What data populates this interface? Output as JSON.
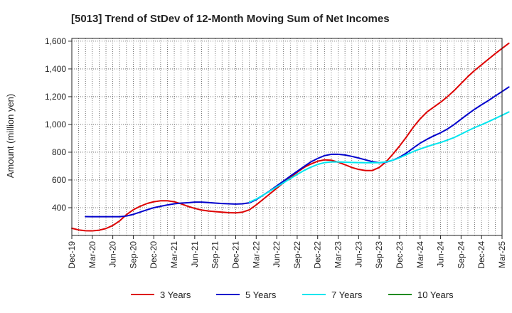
{
  "chart_data": {
    "type": "line",
    "title": "[5013]  Trend of StDev of 12-Month Moving Sum of Net Incomes",
    "xlabel": "",
    "ylabel": "Amount (million yen)",
    "ylim": [
      200,
      1620
    ],
    "yticks": [
      400,
      600,
      800,
      1000,
      1200,
      1400,
      1600
    ],
    "ytick_labels": [
      "400",
      "600",
      "800",
      "1,000",
      "1,200",
      "1,400",
      "1,600"
    ],
    "x_tick_labels": [
      "Dec-19",
      "Mar-20",
      "Jun-20",
      "Sep-20",
      "Dec-20",
      "Mar-21",
      "Jun-21",
      "Sep-21",
      "Dec-21",
      "Mar-22",
      "Jun-22",
      "Sep-22",
      "Dec-22",
      "Mar-23",
      "Jun-23",
      "Sep-23",
      "Dec-23",
      "Mar-24",
      "Jun-24",
      "Sep-24",
      "Dec-24",
      "Mar-25"
    ],
    "grid": true,
    "legend_position": "bottom",
    "series": [
      {
        "name": "3 Years",
        "color": "#dd0000",
        "points": [
          [
            0,
            252
          ],
          [
            1,
            240
          ],
          [
            2,
            234
          ],
          [
            3,
            233
          ],
          [
            4,
            238
          ],
          [
            5,
            250
          ],
          [
            6,
            272
          ],
          [
            7,
            305
          ],
          [
            8,
            350
          ],
          [
            9,
            385
          ],
          [
            10,
            410
          ],
          [
            11,
            430
          ],
          [
            12,
            443
          ],
          [
            13,
            450
          ],
          [
            14,
            450
          ],
          [
            15,
            443
          ],
          [
            16,
            428
          ],
          [
            17,
            410
          ],
          [
            18,
            395
          ],
          [
            19,
            383
          ],
          [
            20,
            376
          ],
          [
            21,
            372
          ],
          [
            22,
            368
          ],
          [
            23,
            364
          ],
          [
            24,
            363
          ],
          [
            25,
            368
          ],
          [
            26,
            385
          ],
          [
            27,
            420
          ],
          [
            28,
            460
          ],
          [
            29,
            500
          ],
          [
            30,
            540
          ],
          [
            31,
            580
          ],
          [
            32,
            618
          ],
          [
            33,
            655
          ],
          [
            34,
            690
          ],
          [
            35,
            715
          ],
          [
            36,
            735
          ],
          [
            37,
            745
          ],
          [
            38,
            742
          ],
          [
            39,
            728
          ],
          [
            40,
            710
          ],
          [
            41,
            690
          ],
          [
            42,
            676
          ],
          [
            43,
            668
          ],
          [
            44,
            668
          ],
          [
            45,
            690
          ],
          [
            46,
            730
          ],
          [
            47,
            785
          ],
          [
            48,
            845
          ],
          [
            49,
            910
          ],
          [
            50,
            980
          ],
          [
            51,
            1040
          ],
          [
            52,
            1090
          ],
          [
            53,
            1125
          ],
          [
            54,
            1160
          ],
          [
            55,
            1200
          ],
          [
            56,
            1245
          ],
          [
            57,
            1295
          ],
          [
            58,
            1345
          ],
          [
            59,
            1390
          ],
          [
            60,
            1430
          ],
          [
            61,
            1470
          ],
          [
            62,
            1510
          ],
          [
            63,
            1548
          ],
          [
            64,
            1585
          ]
        ]
      },
      {
        "name": "5 Years",
        "color": "#0000cc",
        "points": [
          [
            2,
            336
          ],
          [
            3,
            335
          ],
          [
            4,
            335
          ],
          [
            5,
            335
          ],
          [
            6,
            335
          ],
          [
            7,
            335
          ],
          [
            8,
            340
          ],
          [
            9,
            352
          ],
          [
            10,
            368
          ],
          [
            11,
            385
          ],
          [
            12,
            400
          ],
          [
            13,
            410
          ],
          [
            14,
            420
          ],
          [
            15,
            428
          ],
          [
            16,
            433
          ],
          [
            17,
            436
          ],
          [
            18,
            440
          ],
          [
            19,
            440
          ],
          [
            20,
            437
          ],
          [
            21,
            433
          ],
          [
            22,
            430
          ],
          [
            23,
            428
          ],
          [
            24,
            426
          ],
          [
            25,
            428
          ],
          [
            26,
            435
          ],
          [
            27,
            458
          ],
          [
            28,
            490
          ],
          [
            29,
            522
          ],
          [
            30,
            557
          ],
          [
            31,
            592
          ],
          [
            32,
            628
          ],
          [
            33,
            662
          ],
          [
            34,
            697
          ],
          [
            35,
            730
          ],
          [
            36,
            755
          ],
          [
            37,
            775
          ],
          [
            38,
            785
          ],
          [
            39,
            785
          ],
          [
            40,
            780
          ],
          [
            41,
            770
          ],
          [
            42,
            758
          ],
          [
            43,
            745
          ],
          [
            44,
            732
          ],
          [
            45,
            724
          ],
          [
            46,
            728
          ],
          [
            47,
            742
          ],
          [
            48,
            764
          ],
          [
            49,
            794
          ],
          [
            50,
            830
          ],
          [
            51,
            865
          ],
          [
            52,
            893
          ],
          [
            53,
            918
          ],
          [
            54,
            940
          ],
          [
            55,
            967
          ],
          [
            56,
            1000
          ],
          [
            57,
            1038
          ],
          [
            58,
            1075
          ],
          [
            59,
            1110
          ],
          [
            60,
            1142
          ],
          [
            61,
            1172
          ],
          [
            62,
            1205
          ],
          [
            63,
            1237
          ],
          [
            64,
            1270
          ]
        ]
      },
      {
        "name": "7 Years",
        "color": "#00e5ee",
        "points": [
          [
            26,
            440
          ],
          [
            27,
            462
          ],
          [
            28,
            490
          ],
          [
            29,
            520
          ],
          [
            30,
            550
          ],
          [
            31,
            580
          ],
          [
            32,
            610
          ],
          [
            33,
            640
          ],
          [
            34,
            668
          ],
          [
            35,
            692
          ],
          [
            36,
            712
          ],
          [
            37,
            725
          ],
          [
            38,
            730
          ],
          [
            39,
            730
          ],
          [
            40,
            728
          ],
          [
            41,
            726
          ],
          [
            42,
            725
          ],
          [
            43,
            724
          ],
          [
            44,
            724
          ],
          [
            45,
            725
          ],
          [
            46,
            730
          ],
          [
            47,
            742
          ],
          [
            48,
            760
          ],
          [
            49,
            782
          ],
          [
            50,
            805
          ],
          [
            51,
            823
          ],
          [
            52,
            840
          ],
          [
            53,
            856
          ],
          [
            54,
            870
          ],
          [
            55,
            887
          ],
          [
            56,
            906
          ],
          [
            57,
            930
          ],
          [
            58,
            955
          ],
          [
            59,
            978
          ],
          [
            60,
            998
          ],
          [
            61,
            1020
          ],
          [
            62,
            1043
          ],
          [
            63,
            1066
          ],
          [
            64,
            1090
          ]
        ]
      },
      {
        "name": "10 Years",
        "color": "#228b22",
        "points": []
      }
    ]
  }
}
